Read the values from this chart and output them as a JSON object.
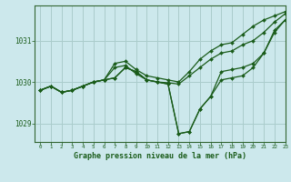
{
  "title": "Graphe pression niveau de la mer (hPa)",
  "bg_color": "#cce8ec",
  "grid_color": "#aacccc",
  "line_color": "#1a5c1a",
  "marker_color": "#1a5c1a",
  "xlim": [
    -0.5,
    23
  ],
  "ylim": [
    1028.55,
    1031.85
  ],
  "yticks": [
    1029,
    1030,
    1031
  ],
  "xticks": [
    0,
    1,
    2,
    3,
    4,
    5,
    6,
    7,
    8,
    9,
    10,
    11,
    12,
    13,
    14,
    15,
    16,
    17,
    18,
    19,
    20,
    21,
    22,
    23
  ],
  "series": [
    {
      "x": [
        0,
        1,
        2,
        3,
        4,
        5,
        6,
        7,
        8,
        9,
        10,
        11,
        12,
        13,
        14,
        15,
        16,
        17,
        18,
        19,
        20,
        21,
        22,
        23
      ],
      "y": [
        1029.8,
        1029.9,
        1029.75,
        1029.8,
        1029.9,
        1030.0,
        1030.05,
        1030.45,
        1030.5,
        1030.3,
        1030.15,
        1030.1,
        1030.05,
        1030.0,
        1030.25,
        1030.55,
        1030.75,
        1030.9,
        1030.95,
        1031.15,
        1031.35,
        1031.5,
        1031.6,
        1031.7
      ],
      "marker": true
    },
    {
      "x": [
        0,
        1,
        2,
        3,
        4,
        5,
        6,
        7,
        8,
        9,
        10,
        11,
        12,
        13,
        14,
        15,
        16,
        17,
        18,
        19,
        20,
        21,
        22,
        23
      ],
      "y": [
        1029.8,
        1029.9,
        1029.75,
        1029.8,
        1029.9,
        1030.0,
        1030.05,
        1030.35,
        1030.4,
        1030.2,
        1030.05,
        1030.0,
        1029.98,
        1029.95,
        1030.15,
        1030.35,
        1030.55,
        1030.7,
        1030.75,
        1030.9,
        1031.0,
        1031.2,
        1031.45,
        1031.65
      ],
      "marker": true
    },
    {
      "x": [
        0,
        1,
        2,
        3,
        4,
        5,
        6,
        7,
        8,
        9,
        10,
        11,
        12,
        13,
        14,
        15,
        16,
        17,
        18,
        19,
        20,
        21,
        22,
        23
      ],
      "y": [
        1029.8,
        1029.9,
        1029.75,
        1029.8,
        1029.9,
        1030.0,
        1030.05,
        1030.1,
        1030.35,
        1030.25,
        1030.05,
        1030.0,
        1029.95,
        1028.75,
        1028.8,
        1029.35,
        1029.65,
        1030.05,
        1030.1,
        1030.15,
        1030.35,
        1030.7,
        1031.25,
        1031.5
      ],
      "marker": true
    },
    {
      "x": [
        0,
        1,
        2,
        3,
        4,
        5,
        6,
        7,
        8,
        9,
        10,
        11,
        12,
        13,
        14,
        15,
        16,
        17,
        18,
        19,
        20,
        21,
        22,
        23
      ],
      "y": [
        1029.8,
        1029.9,
        1029.75,
        1029.8,
        1029.9,
        1030.0,
        1030.05,
        1030.1,
        1030.35,
        1030.25,
        1030.05,
        1030.0,
        1029.95,
        1028.75,
        1028.8,
        1029.35,
        1029.65,
        1030.25,
        1030.3,
        1030.35,
        1030.45,
        1030.7,
        1031.2,
        1031.5
      ],
      "marker": true
    }
  ]
}
